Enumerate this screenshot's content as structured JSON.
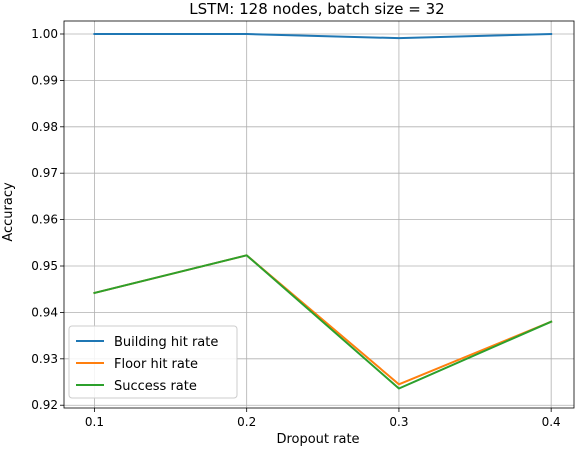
{
  "chart_data": {
    "type": "line",
    "title": "LSTM: 128 nodes, batch size = 32",
    "xlabel": "Dropout rate",
    "ylabel": "Accuracy",
    "x": [
      0.1,
      0.2,
      0.3,
      0.4
    ],
    "x_ticks": [
      "0.1",
      "0.2",
      "0.3",
      "0.4"
    ],
    "y_ticks": [
      "0.92",
      "0.93",
      "0.94",
      "0.95",
      "0.96",
      "0.97",
      "0.98",
      "0.99",
      "1.00"
    ],
    "xlim": [
      0.08,
      0.415
    ],
    "ylim": [
      0.9194,
      1.0028
    ],
    "grid": true,
    "legend_position": "lower-left",
    "series": [
      {
        "name": "Building hit rate",
        "color": "#1f77b4",
        "values": [
          1.0,
          1.0,
          0.9991,
          1.0
        ]
      },
      {
        "name": "Floor hit rate",
        "color": "#ff7f0e",
        "values": [
          0.9442,
          0.9523,
          0.9245,
          0.938
        ]
      },
      {
        "name": "Success rate",
        "color": "#2ca02c",
        "values": [
          0.9442,
          0.9523,
          0.9236,
          0.938
        ]
      }
    ]
  }
}
